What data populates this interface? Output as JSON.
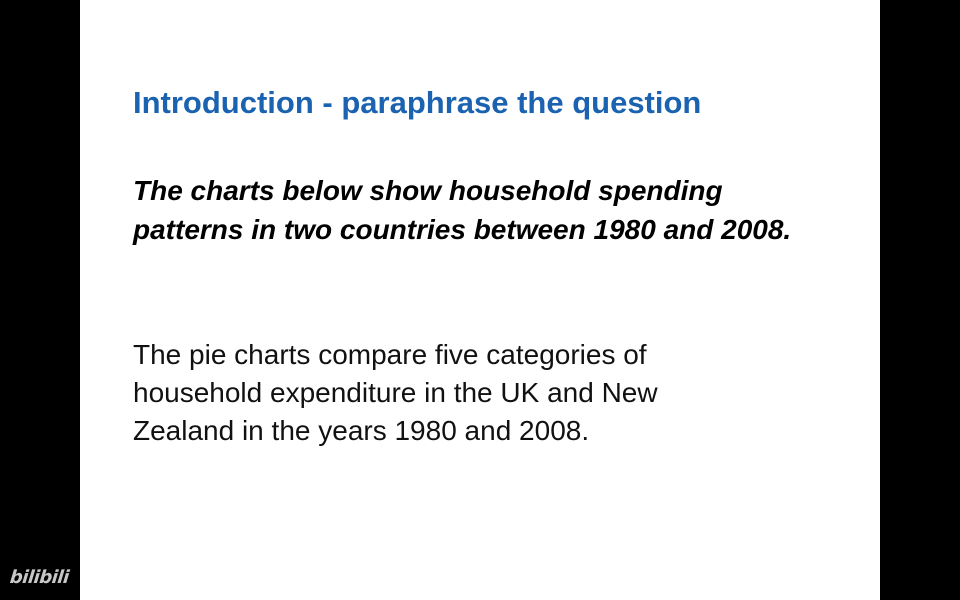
{
  "slide": {
    "title": "Introduction - paraphrase the question",
    "question_text": "The charts below show household spending patterns in two countries between 1980 and 2008.",
    "paraphrase_text": "The pie charts compare five categories of household expenditure in the UK and New Zealand in the years 1980 and 2008."
  },
  "watermark": {
    "text": "bilibili"
  },
  "colors": {
    "title": "#1b63b0",
    "background": "#ffffff",
    "letterbox": "#000000"
  }
}
